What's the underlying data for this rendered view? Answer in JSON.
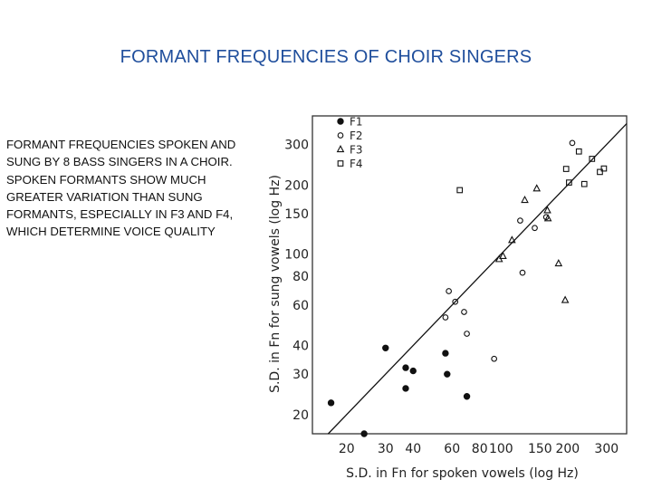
{
  "slide": {
    "title": "FORMANT FREQUENCIES OF CHOIR SINGERS",
    "paragraphs": [
      "FORMANT FREQUENCIES SPOKEN AND SUNG BY 8 BASS SINGERS IN A CHOIR.",
      "SPOKEN FORMANTS SHOW MUCH GREATER VARIATION THAN SUNG FORMANTS, ESPECIALLY IN F3 AND F4, WHICH DETERMINE VOICE QUALITY"
    ]
  },
  "chart_data": {
    "type": "scatter",
    "xlabel": "S.D. in Fn for spoken vowels",
    "xlabel_unit": "(log Hz)",
    "ylabel": "S.D. in Fn for sung vowels",
    "ylabel_unit": "(log Hz)",
    "x_scale": "log",
    "y_scale": "log",
    "xlim": [
      14,
      370
    ],
    "ylim": [
      16.5,
      400
    ],
    "x_ticks": [
      20,
      30,
      40,
      60,
      80,
      100,
      150,
      200,
      300
    ],
    "y_ticks": [
      20,
      30,
      40,
      60,
      80,
      100,
      150,
      200,
      300
    ],
    "identity_line": true,
    "legend_position": "top-left",
    "series": [
      {
        "name": "F1",
        "marker": "filled-circle",
        "points": [
          [
            17,
            22.5
          ],
          [
            24,
            16.5
          ],
          [
            30,
            39
          ],
          [
            37,
            32
          ],
          [
            40,
            31
          ],
          [
            37,
            26
          ],
          [
            56,
            37
          ],
          [
            57,
            30
          ],
          [
            70,
            24
          ]
        ]
      },
      {
        "name": "F2",
        "marker": "open-circle",
        "points": [
          [
            56,
            53
          ],
          [
            58,
            69
          ],
          [
            62,
            62
          ],
          [
            68,
            56
          ],
          [
            70,
            45
          ],
          [
            93,
            35
          ],
          [
            122,
            140
          ],
          [
            125,
            83
          ],
          [
            142,
            130
          ],
          [
            160,
            145
          ],
          [
            210,
            305
          ]
        ]
      },
      {
        "name": "F3",
        "marker": "triangle",
        "points": [
          [
            98,
            95
          ],
          [
            102,
            98
          ],
          [
            112,
            115
          ],
          [
            128,
            172
          ],
          [
            145,
            193
          ],
          [
            162,
            155
          ],
          [
            163,
            143
          ],
          [
            182,
            91
          ],
          [
            195,
            63
          ]
        ]
      },
      {
        "name": "F4",
        "marker": "square",
        "points": [
          [
            65,
            190
          ],
          [
            197,
            235
          ],
          [
            203,
            205
          ],
          [
            225,
            280
          ],
          [
            238,
            202
          ],
          [
            258,
            260
          ],
          [
            280,
            228
          ],
          [
            292,
            236
          ]
        ]
      }
    ]
  }
}
